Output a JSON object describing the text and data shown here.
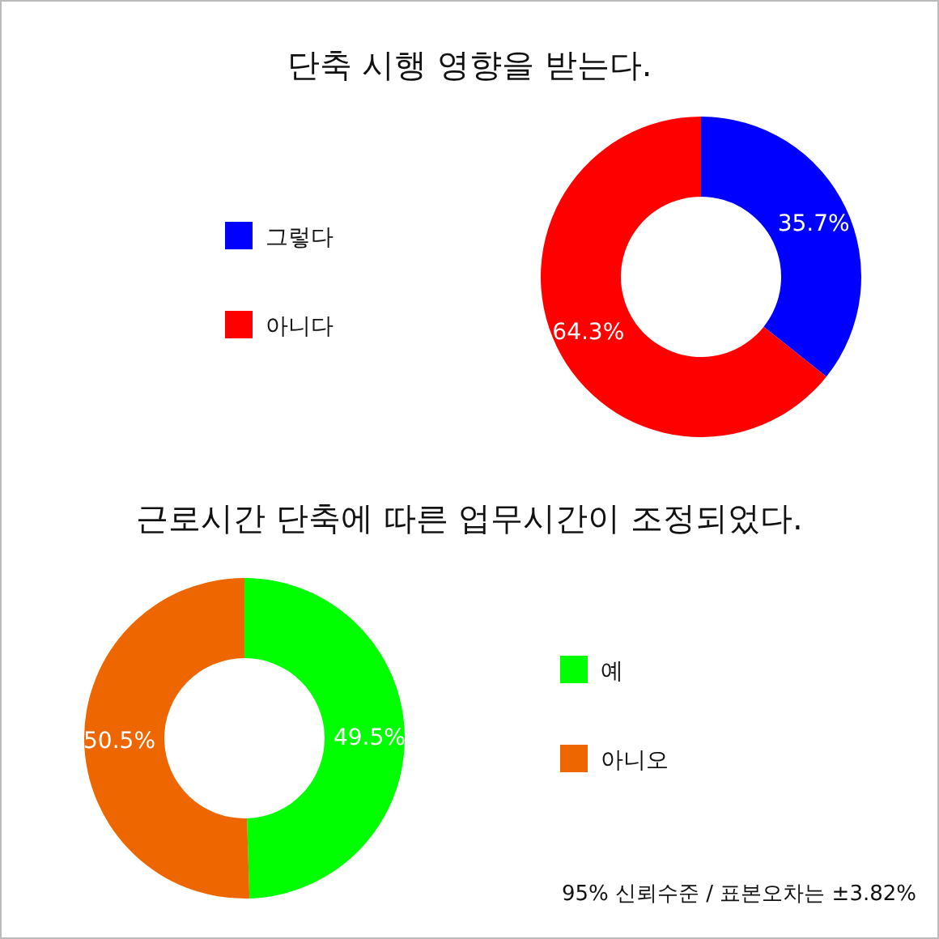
{
  "chart_data": [
    {
      "type": "donut",
      "title": "단축 시행 영향을 받는다.",
      "categories": [
        "그렇다",
        "아니다"
      ],
      "values": [
        35.7,
        64.3
      ],
      "colors": [
        "#0000ff",
        "#ff0000"
      ],
      "value_labels": [
        "35.7%",
        "64.3%"
      ],
      "legend": "left"
    },
    {
      "type": "donut",
      "title": "근로시간 단축에 따른 업무시간이 조정되었다.",
      "categories": [
        "예",
        "아니오"
      ],
      "values": [
        49.5,
        50.5
      ],
      "colors": [
        "#00ff00",
        "#ee6600"
      ],
      "value_labels": [
        "49.5%",
        "50.5%"
      ],
      "legend": "right",
      "annotations": [
        "95% 신뢰수준  / 표본오차는 ±3.82%"
      ]
    }
  ]
}
